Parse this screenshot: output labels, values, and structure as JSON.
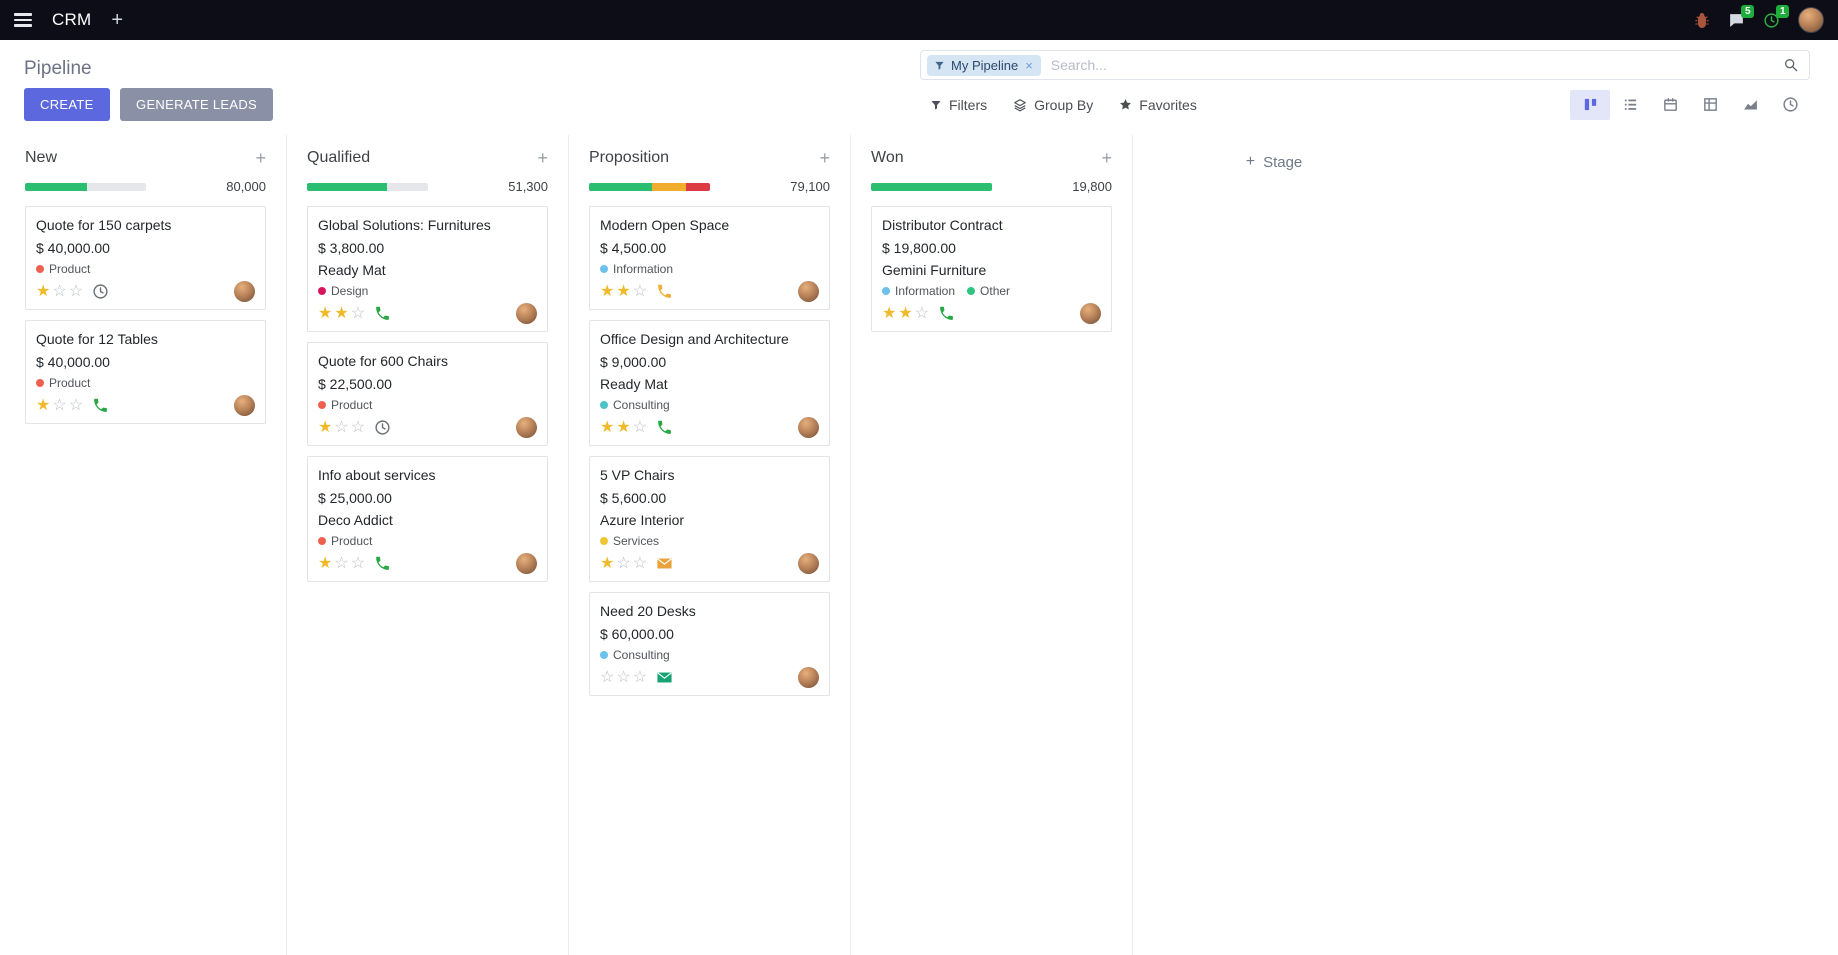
{
  "topbar": {
    "app_name": "CRM",
    "messages_badge": "5",
    "activities_badge": "1"
  },
  "control_panel": {
    "title": "Pipeline",
    "search": {
      "facet_label": "My Pipeline",
      "facet_remove": "×",
      "placeholder": "Search..."
    },
    "create_label": "CREATE",
    "generate_leads_label": "GENERATE LEADS",
    "filters_label": "Filters",
    "group_by_label": "Group By",
    "favorites_label": "Favorites",
    "view_switcher": {
      "active": "kanban",
      "views": [
        "kanban",
        "list",
        "calendar",
        "pivot",
        "graph",
        "activity"
      ]
    }
  },
  "kanban": {
    "add_stage_label": "Stage",
    "columns": [
      {
        "name": "New",
        "total": "80,000",
        "progress": [
          {
            "state": "success",
            "color": "#2bbd70",
            "pct": 51
          }
        ],
        "cards": [
          {
            "title": "Quote for 150 carpets",
            "amount": "$ 40,000.00",
            "partner": "",
            "tags": [
              {
                "label": "Product",
                "color": "#f06050"
              }
            ],
            "stars": 1,
            "activity": {
              "icon": "clock",
              "color": "#6a7076"
            }
          },
          {
            "title": "Quote for 12 Tables",
            "amount": "$ 40,000.00",
            "partner": "",
            "tags": [
              {
                "label": "Product",
                "color": "#f06050"
              }
            ],
            "stars": 1,
            "activity": {
              "icon": "phone",
              "color": "#28a745"
            }
          }
        ]
      },
      {
        "name": "Qualified",
        "total": "51,300",
        "progress": [
          {
            "state": "success",
            "color": "#2bbd70",
            "pct": 66
          }
        ],
        "cards": [
          {
            "title": "Global Solutions: Furnitures",
            "amount": "$ 3,800.00",
            "partner": "Ready Mat",
            "tags": [
              {
                "label": "Design",
                "color": "#d6145f"
              }
            ],
            "stars": 2,
            "activity": {
              "icon": "phone",
              "color": "#28a745"
            }
          },
          {
            "title": "Quote for 600 Chairs",
            "amount": "$ 22,500.00",
            "partner": "",
            "tags": [
              {
                "label": "Product",
                "color": "#f06050"
              }
            ],
            "stars": 1,
            "activity": {
              "icon": "clock",
              "color": "#6a7076"
            }
          },
          {
            "title": "Info about services",
            "amount": "$ 25,000.00",
            "partner": "Deco Addict",
            "tags": [
              {
                "label": "Product",
                "color": "#f06050"
              }
            ],
            "stars": 1,
            "activity": {
              "icon": "phone",
              "color": "#28a745"
            }
          }
        ]
      },
      {
        "name": "Proposition",
        "total": "79,100",
        "progress": [
          {
            "state": "success",
            "color": "#2bbd70",
            "pct": 52
          },
          {
            "state": "warning",
            "color": "#f0ad2e",
            "pct": 28
          },
          {
            "state": "danger",
            "color": "#dd3b44",
            "pct": 20
          }
        ],
        "cards": [
          {
            "title": "Modern Open Space",
            "amount": "$ 4,500.00",
            "partner": "",
            "tags": [
              {
                "label": "Information",
                "color": "#6cc1ed"
              }
            ],
            "stars": 2,
            "activity": {
              "icon": "phone",
              "color": "#efb03a"
            }
          },
          {
            "title": "Office Design and Architecture",
            "amount": "$ 9,000.00",
            "partner": "Ready Mat",
            "tags": [
              {
                "label": "Consulting",
                "color": "#4ec3c7"
              }
            ],
            "stars": 2,
            "activity": {
              "icon": "phone",
              "color": "#28a745"
            }
          },
          {
            "title": "5 VP Chairs",
            "amount": "$ 5,600.00",
            "partner": "Azure Interior",
            "tags": [
              {
                "label": "Services",
                "color": "#efc633"
              }
            ],
            "stars": 1,
            "activity": {
              "icon": "envelope",
              "color": "#e8a33d"
            }
          },
          {
            "title": "Need 20 Desks",
            "amount": "$ 60,000.00",
            "partner": "",
            "tags": [
              {
                "label": "Consulting",
                "color": "#6cc1ed"
              }
            ],
            "stars": 0,
            "activity": {
              "icon": "envelope",
              "color": "#19a374"
            }
          }
        ]
      },
      {
        "name": "Won",
        "total": "19,800",
        "progress": [
          {
            "state": "success",
            "color": "#2bbd70",
            "pct": 100
          }
        ],
        "cards": [
          {
            "title": "Distributor Contract",
            "amount": "$ 19,800.00",
            "partner": "Gemini Furniture",
            "tags": [
              {
                "label": "Information",
                "color": "#6cc1ed"
              },
              {
                "label": "Other",
                "color": "#30c381"
              }
            ],
            "stars": 2,
            "activity": {
              "icon": "phone",
              "color": "#28a745"
            }
          }
        ]
      }
    ]
  }
}
